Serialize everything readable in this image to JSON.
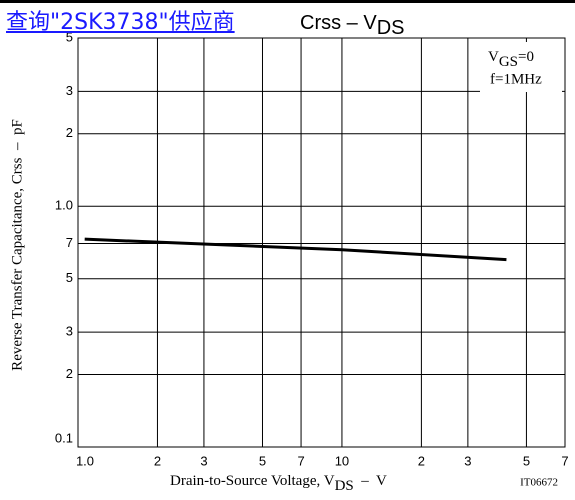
{
  "link_text": "查询\"2SK3738\"供应商",
  "chart_data": {
    "type": "line",
    "title": [
      "Crss",
      " – V",
      "DS"
    ],
    "x_label": [
      "Drain-to-Source Voltage, V",
      "DS",
      "  –  V"
    ],
    "y_label": "Reverse Transfer Capacitance, Crss  –  pF",
    "annotation": [
      "V",
      "GS",
      "=0",
      "f=1MHz"
    ],
    "figure_id": "IT06672",
    "log_x": true,
    "log_y": true,
    "grid": true,
    "xlim": [
      1,
      70
    ],
    "ylim": [
      0.1,
      5
    ],
    "xticks": [
      {
        "value": 1,
        "label": "1.0"
      },
      2,
      3,
      5,
      7,
      10,
      {
        "value": 20,
        "label": "2"
      },
      {
        "value": 30,
        "label": "3"
      },
      {
        "value": 50,
        "label": "5"
      },
      {
        "value": 70,
        "label": "7"
      }
    ],
    "yticks": [
      0.1,
      {
        "value": 0.2,
        "label": "2"
      },
      {
        "value": 0.3,
        "label": "3"
      },
      {
        "value": 0.5,
        "label": "5"
      },
      {
        "value": 0.7,
        "label": "7"
      },
      {
        "value": 1,
        "label": "1.0"
      },
      2,
      3,
      5
    ],
    "x": [
      1.06,
      10,
      42
    ],
    "series": [
      {
        "name": "Crss",
        "color": "#000000",
        "values": [
          0.73,
          0.66,
          0.6
        ]
      }
    ]
  }
}
